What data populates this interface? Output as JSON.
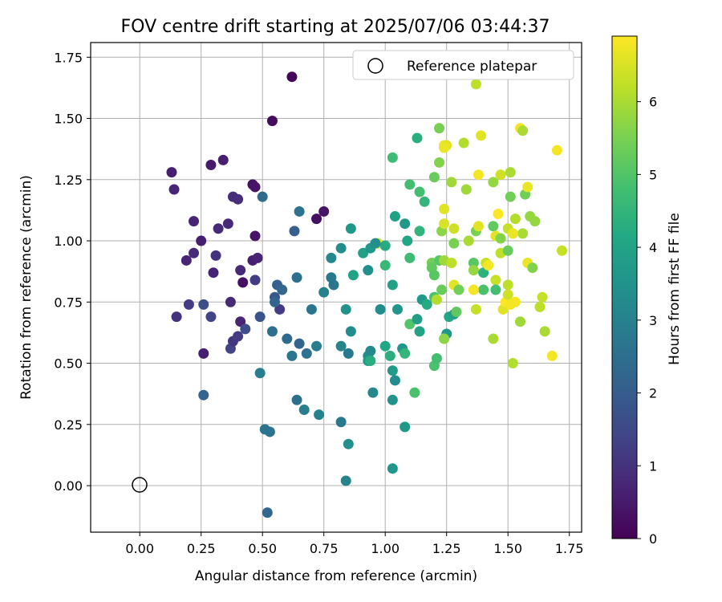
{
  "chart_data": {
    "type": "scatter",
    "title": "FOV centre drift starting at 2025/07/06 03:44:37",
    "xlabel": "Angular distance from reference (arcmin)",
    "ylabel": "Rotation from reference (arcmin)",
    "xlim": [
      -0.2,
      1.8
    ],
    "ylim": [
      -0.19,
      1.81
    ],
    "xticks": [
      "0.00",
      "0.25",
      "0.50",
      "0.75",
      "1.00",
      "1.25",
      "1.50",
      "1.75"
    ],
    "yticks": [
      "0.00",
      "0.25",
      "0.50",
      "0.75",
      "1.00",
      "1.25",
      "1.50",
      "1.75"
    ],
    "grid": true,
    "legend": {
      "position": "top-right",
      "entries": [
        {
          "label": "Reference platepar",
          "marker": "open-circle"
        }
      ]
    },
    "reference_point": {
      "x": 0.0,
      "y": 0.0
    },
    "colorbar": {
      "label": "Hours from first FF file",
      "min": 0,
      "max": 6.9,
      "ticks": [
        "0",
        "1",
        "2",
        "3",
        "4",
        "5",
        "6"
      ],
      "colormap": "viridis"
    },
    "series": [
      {
        "points": [
          [
            0.62,
            1.67,
            0.1
          ],
          [
            0.54,
            1.49,
            0.2
          ],
          [
            0.13,
            1.28,
            0.6
          ],
          [
            0.14,
            1.21,
            0.7
          ],
          [
            0.29,
            1.31,
            0.5
          ],
          [
            0.34,
            1.33,
            0.6
          ],
          [
            0.46,
            1.23,
            0.3
          ],
          [
            0.47,
            1.22,
            0.4
          ],
          [
            0.22,
            1.08,
            0.7
          ],
          [
            0.32,
            1.05,
            0.8
          ],
          [
            0.36,
            1.07,
            0.8
          ],
          [
            0.38,
            1.18,
            0.9
          ],
          [
            0.4,
            1.17,
            0.9
          ],
          [
            0.47,
            1.02,
            0.4
          ],
          [
            0.25,
            1.0,
            0.6
          ],
          [
            0.19,
            0.92,
            0.7
          ],
          [
            0.22,
            0.95,
            0.8
          ],
          [
            0.31,
            0.94,
            1.0
          ],
          [
            0.3,
            0.87,
            0.7
          ],
          [
            0.41,
            0.88,
            0.8
          ],
          [
            0.46,
            0.92,
            0.6
          ],
          [
            0.48,
            0.93,
            0.7
          ],
          [
            0.42,
            0.83,
            0.3
          ],
          [
            0.47,
            0.84,
            1.2
          ],
          [
            0.72,
            1.09,
            0.3
          ],
          [
            0.75,
            1.12,
            0.4
          ],
          [
            0.5,
            1.18,
            2.4
          ],
          [
            0.63,
            1.04,
            2.1
          ],
          [
            0.65,
            1.12,
            2.6
          ],
          [
            0.15,
            0.69,
            1.0
          ],
          [
            0.2,
            0.74,
            1.2
          ],
          [
            0.26,
            0.74,
            1.6
          ],
          [
            0.29,
            0.69,
            1.4
          ],
          [
            0.37,
            0.75,
            0.8
          ],
          [
            0.26,
            0.54,
            0.6
          ],
          [
            0.37,
            0.56,
            1.4
          ],
          [
            0.38,
            0.59,
            1.1
          ],
          [
            0.4,
            0.61,
            1.2
          ],
          [
            0.41,
            0.67,
            0.7
          ],
          [
            0.43,
            0.64,
            1.6
          ],
          [
            0.49,
            0.69,
            1.8
          ],
          [
            0.55,
            0.77,
            1.9
          ],
          [
            0.56,
            0.82,
            2.1
          ],
          [
            0.57,
            0.72,
            1.2
          ],
          [
            0.58,
            0.8,
            2.3
          ],
          [
            0.55,
            0.75,
            2.2
          ],
          [
            0.64,
            0.85,
            2.5
          ],
          [
            0.7,
            0.72,
            2.7
          ],
          [
            0.54,
            0.63,
            2.5
          ],
          [
            0.6,
            0.6,
            2.4
          ],
          [
            0.62,
            0.53,
            2.7
          ],
          [
            0.65,
            0.58,
            2.2
          ],
          [
            0.68,
            0.54,
            2.6
          ],
          [
            0.72,
            0.57,
            2.9
          ],
          [
            0.26,
            0.37,
            2.2
          ],
          [
            0.49,
            0.46,
            2.9
          ],
          [
            0.64,
            0.35,
            2.5
          ],
          [
            0.67,
            0.31,
            2.9
          ],
          [
            0.73,
            0.29,
            3.0
          ],
          [
            0.51,
            0.23,
            2.7
          ],
          [
            0.53,
            0.22,
            2.6
          ],
          [
            0.52,
            -0.11,
            2.3
          ],
          [
            0.78,
            0.85,
            2.8
          ],
          [
            0.79,
            0.82,
            2.7
          ],
          [
            0.75,
            0.79,
            3.0
          ],
          [
            0.78,
            0.93,
            3.2
          ],
          [
            0.82,
            0.97,
            3.3
          ],
          [
            0.84,
            0.72,
            3.5
          ],
          [
            0.82,
            0.57,
            3.1
          ],
          [
            0.85,
            0.54,
            2.8
          ],
          [
            0.86,
            0.63,
            3.3
          ],
          [
            0.82,
            0.26,
            2.8
          ],
          [
            0.85,
            0.17,
            3.4
          ],
          [
            0.84,
            0.02,
            3.1
          ],
          [
            0.86,
            1.05,
            3.7
          ],
          [
            0.87,
            0.86,
            4.0
          ],
          [
            0.91,
            0.95,
            3.9
          ],
          [
            0.93,
            0.88,
            3.4
          ],
          [
            0.94,
            0.97,
            3.6
          ],
          [
            0.93,
            0.53,
            3.4
          ],
          [
            0.94,
            0.55,
            3.2
          ],
          [
            0.93,
            0.51,
            3.7
          ],
          [
            0.94,
            0.51,
            4.3
          ],
          [
            0.95,
            0.38,
            3.2
          ],
          [
            0.97,
            0.99,
            6.5
          ],
          [
            0.98,
            0.72,
            3.3
          ],
          [
            1.0,
            0.98,
            4.2
          ],
          [
            1.0,
            0.9,
            4.6
          ],
          [
            0.96,
            0.99,
            3.4
          ],
          [
            1.0,
            0.57,
            4.1
          ],
          [
            1.02,
            0.53,
            4.3
          ],
          [
            1.03,
            0.82,
            3.9
          ],
          [
            1.03,
            0.47,
            3.7
          ],
          [
            1.04,
            0.43,
            3.3
          ],
          [
            1.03,
            0.35,
            3.5
          ],
          [
            1.03,
            0.07,
            3.6
          ],
          [
            1.03,
            1.34,
            4.7
          ],
          [
            1.04,
            1.1,
            3.9
          ],
          [
            1.05,
            0.72,
            3.6
          ],
          [
            1.07,
            0.56,
            3.6
          ],
          [
            1.08,
            0.54,
            4.5
          ],
          [
            1.08,
            0.24,
            3.7
          ],
          [
            1.08,
            1.07,
            3.7
          ],
          [
            1.09,
            1.0,
            4.1
          ],
          [
            1.1,
            1.23,
            4.8
          ],
          [
            1.1,
            0.93,
            4.7
          ],
          [
            1.1,
            0.66,
            5.0
          ],
          [
            1.12,
            0.38,
            4.9
          ],
          [
            1.13,
            1.42,
            4.3
          ],
          [
            1.14,
            1.2,
            4.8
          ],
          [
            1.14,
            1.04,
            4.5
          ],
          [
            1.13,
            0.68,
            3.8
          ],
          [
            1.14,
            0.63,
            4.0
          ],
          [
            1.15,
            0.76,
            3.7
          ],
          [
            1.16,
            1.16,
            4.5
          ],
          [
            1.17,
            0.74,
            4.2
          ],
          [
            1.2,
            1.26,
            5.3
          ],
          [
            1.19,
            0.91,
            5.4
          ],
          [
            1.19,
            0.89,
            5.2
          ],
          [
            1.2,
            0.86,
            5.1
          ],
          [
            1.2,
            0.77,
            4.9
          ],
          [
            1.2,
            0.49,
            4.9
          ],
          [
            1.21,
            0.52,
            4.8
          ],
          [
            1.22,
            1.46,
            5.5
          ],
          [
            1.22,
            1.32,
            5.6
          ],
          [
            1.22,
            0.92,
            5.1
          ],
          [
            1.21,
            0.76,
            6.1
          ],
          [
            1.23,
            1.04,
            5.7
          ],
          [
            1.23,
            0.8,
            5.3
          ],
          [
            1.24,
            0.92,
            5.9
          ],
          [
            1.24,
            1.39,
            6.7
          ],
          [
            1.25,
            1.39,
            6.6
          ],
          [
            1.24,
            1.13,
            6.6
          ],
          [
            1.24,
            1.07,
            6.5
          ],
          [
            1.25,
            0.62,
            3.6
          ],
          [
            1.24,
            0.6,
            6.0
          ],
          [
            1.24,
            0.6,
            5.7
          ],
          [
            1.26,
            0.69,
            4.1
          ],
          [
            1.27,
            1.24,
            5.9
          ],
          [
            1.28,
            0.99,
            5.5
          ],
          [
            1.27,
            0.91,
            6.2
          ],
          [
            1.28,
            0.7,
            3.9
          ],
          [
            1.28,
            1.05,
            6.4
          ],
          [
            1.28,
            0.82,
            6.6
          ],
          [
            1.29,
            0.71,
            5.2
          ],
          [
            1.3,
            0.8,
            5.4
          ],
          [
            1.32,
            1.4,
            6.1
          ],
          [
            1.33,
            1.21,
            5.9
          ],
          [
            1.34,
            1.0,
            6.0
          ],
          [
            1.36,
            0.91,
            5.1
          ],
          [
            1.36,
            0.88,
            5.8
          ],
          [
            1.37,
            1.64,
            6.2
          ],
          [
            1.37,
            1.04,
            5.5
          ],
          [
            1.37,
            0.72,
            6.3
          ],
          [
            1.38,
            1.27,
            6.8
          ],
          [
            1.38,
            1.06,
            6.6
          ],
          [
            1.39,
            1.43,
            6.6
          ],
          [
            1.4,
            0.8,
            4.9
          ],
          [
            1.4,
            0.87,
            4.4
          ],
          [
            1.41,
            0.91,
            6.3
          ],
          [
            1.42,
            0.9,
            6.8
          ],
          [
            1.44,
            1.24,
            5.8
          ],
          [
            1.44,
            1.06,
            5.2
          ],
          [
            1.45,
            0.84,
            6.3
          ],
          [
            1.45,
            0.8,
            4.8
          ],
          [
            1.45,
            1.02,
            6.6
          ],
          [
            1.46,
            1.11,
            6.9
          ],
          [
            1.47,
            1.27,
            6.4
          ],
          [
            1.47,
            1.01,
            5.6
          ],
          [
            1.47,
            0.95,
            6.2
          ],
          [
            1.48,
            0.72,
            6.6
          ],
          [
            1.49,
            0.75,
            6.9
          ],
          [
            1.5,
            1.05,
            6.3
          ],
          [
            1.5,
            0.96,
            5.3
          ],
          [
            1.5,
            0.82,
            6.2
          ],
          [
            1.5,
            0.78,
            6.4
          ],
          [
            1.51,
            1.28,
            6.0
          ],
          [
            1.51,
            1.18,
            5.4
          ],
          [
            1.52,
            1.03,
            6.6
          ],
          [
            1.52,
            0.5,
            6.1
          ],
          [
            1.53,
            1.09,
            6.1
          ],
          [
            1.53,
            0.75,
            6.8
          ],
          [
            1.55,
            1.46,
            6.8
          ],
          [
            1.55,
            0.67,
            5.9
          ],
          [
            1.56,
            1.45,
            6.0
          ],
          [
            1.56,
            1.03,
            6.0
          ],
          [
            1.57,
            1.19,
            5.4
          ],
          [
            1.58,
            0.91,
            6.7
          ],
          [
            1.58,
            1.22,
            6.7
          ],
          [
            1.59,
            1.1,
            5.8
          ],
          [
            1.6,
            0.89,
            5.6
          ],
          [
            1.61,
            1.08,
            5.8
          ],
          [
            1.63,
            0.73,
            6.2
          ],
          [
            1.64,
            0.77,
            6.3
          ],
          [
            1.65,
            0.63,
            6.0
          ],
          [
            1.68,
            0.53,
            6.8
          ],
          [
            1.7,
            1.37,
            6.8
          ],
          [
            1.72,
            0.96,
            6.3
          ],
          [
            1.44,
            0.6,
            6.0
          ],
          [
            1.51,
            0.74,
            6.8
          ],
          [
            1.36,
            0.8,
            6.8
          ],
          [
            1.24,
            1.38,
            6.7
          ],
          [
            1.52,
            1.03,
            6.7
          ]
        ]
      }
    ]
  }
}
